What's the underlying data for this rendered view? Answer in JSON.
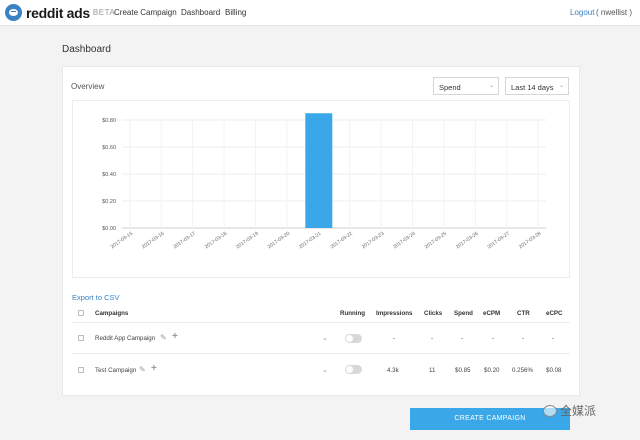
{
  "header": {
    "brand": "reddit ads",
    "beta": "BETA",
    "nav": [
      "Create Campaign",
      "Dashboard",
      "Billing"
    ],
    "logout": "Logout",
    "username": "( nwellist )"
  },
  "page_title": "Dashboard",
  "overview": {
    "label": "Overview",
    "metric_select": "Spend",
    "range_select": "Last 14 days"
  },
  "chart_data": {
    "type": "bar",
    "categories": [
      "2017-03-15",
      "2017-03-16",
      "2017-03-17",
      "2017-03-18",
      "2017-03-19",
      "2017-03-20",
      "2017-03-21",
      "2017-03-22",
      "2017-03-23",
      "2017-03-24",
      "2017-03-25",
      "2017-03-26",
      "2017-03-27",
      "2017-03-28"
    ],
    "values": [
      0,
      0,
      0,
      0,
      0,
      0,
      0.85,
      0,
      0,
      0,
      0,
      0,
      0,
      0
    ],
    "y_ticks": [
      "$0.00",
      "$0.20",
      "$0.40",
      "$0.60",
      "$0.80"
    ],
    "ylim": [
      0,
      0.8
    ],
    "grid": true,
    "bar_color": "#3aa8e8",
    "title": "",
    "xlabel": "",
    "ylabel": ""
  },
  "export_label": "Export to CSV",
  "table": {
    "headers": {
      "campaigns": "Campaigns",
      "running": "Running",
      "impressions": "Impressions",
      "clicks": "Clicks",
      "spend": "Spend",
      "ecpm": "eCPM",
      "ctr": "CTR",
      "ecpc": "eCPC"
    },
    "rows": [
      {
        "name": "Reddit App Campaign",
        "impressions": "-",
        "clicks": "-",
        "spend": "-",
        "ecpm": "-",
        "ctr": "-",
        "ecpc": "-"
      },
      {
        "name": "Test Campaign",
        "impressions": "4.3k",
        "clicks": "11",
        "spend": "$0.85",
        "ecpm": "$0.20",
        "ctr": "0.256%",
        "ecpc": "$0.08"
      }
    ]
  },
  "create_button": "CREATE CAMPAIGN",
  "watermark": "全媒派",
  "icons": {
    "logo": "reddit-alien-icon",
    "edit": "pencil-icon",
    "add": "plus-icon",
    "expand": "chevron-down-icon",
    "watermark": "wechat-icon"
  }
}
